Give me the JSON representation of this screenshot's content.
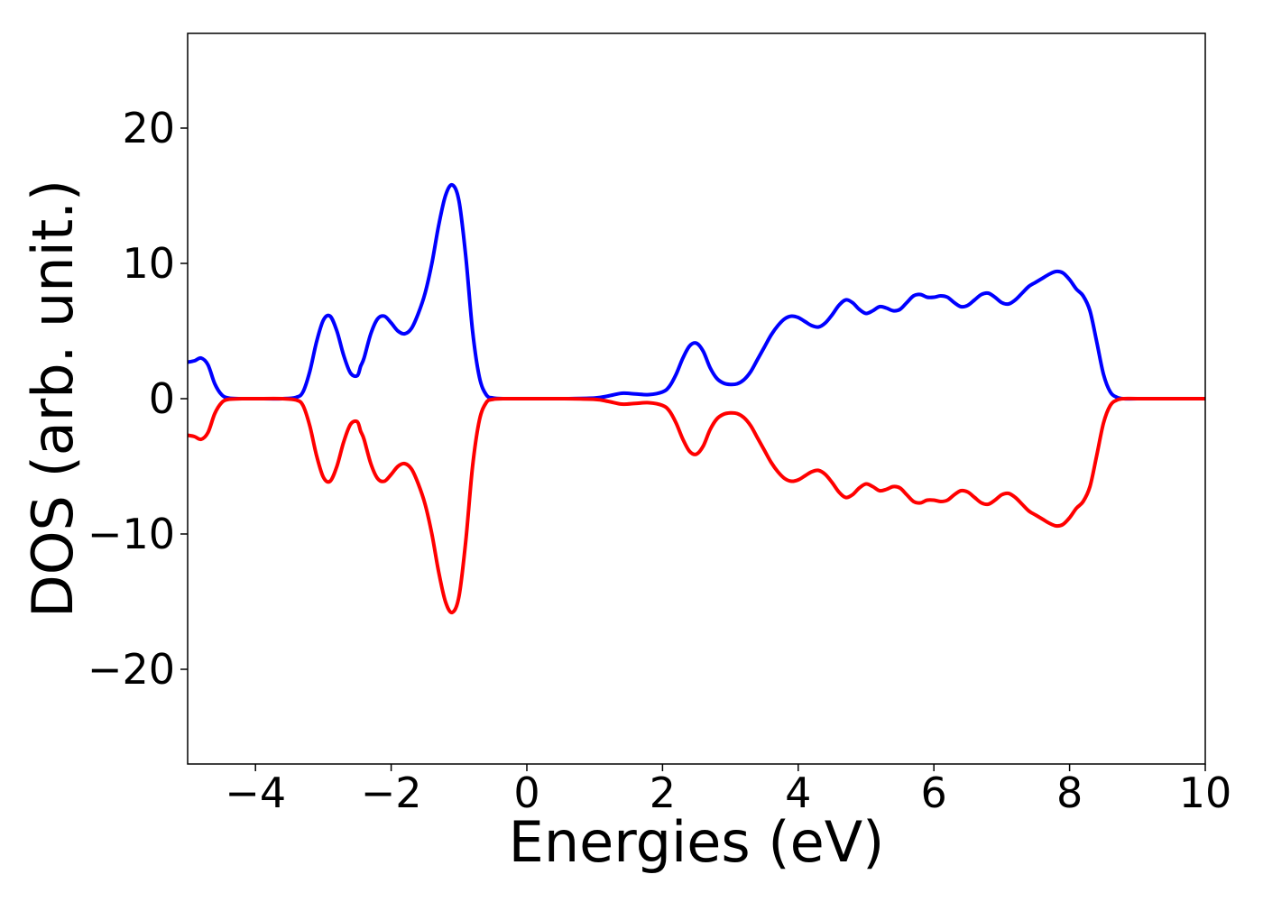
{
  "chart_data": {
    "type": "line",
    "title": "",
    "xlabel": "Energies (eV)",
    "ylabel": "DOS (arb. unit.)",
    "xlim": [
      -5,
      10
    ],
    "ylim": [
      -27,
      27
    ],
    "xticks": [
      -4,
      -2,
      0,
      2,
      4,
      6,
      8,
      10
    ],
    "yticks": [
      -20,
      -10,
      0,
      10,
      20
    ],
    "grid": false,
    "series": [
      {
        "color": "#0000ff",
        "x": [
          -5.0,
          -4.9,
          -4.8,
          -4.7,
          -4.6,
          -4.5,
          -4.4,
          -4.2,
          -4.0,
          -3.6,
          -3.4,
          -3.3,
          -3.2,
          -3.1,
          -3.0,
          -2.9,
          -2.8,
          -2.7,
          -2.6,
          -2.5,
          -2.45,
          -2.4,
          -2.3,
          -2.2,
          -2.1,
          -2.0,
          -1.9,
          -1.8,
          -1.7,
          -1.6,
          -1.5,
          -1.4,
          -1.3,
          -1.2,
          -1.1,
          -1.0,
          -0.9,
          -0.8,
          -0.7,
          -0.6,
          -0.5,
          -0.3,
          0.0,
          0.5,
          1.0,
          1.2,
          1.4,
          1.6,
          1.8,
          2.0,
          2.1,
          2.2,
          2.3,
          2.4,
          2.5,
          2.6,
          2.7,
          2.8,
          2.9,
          3.0,
          3.1,
          3.2,
          3.3,
          3.4,
          3.5,
          3.6,
          3.7,
          3.8,
          3.9,
          4.0,
          4.1,
          4.2,
          4.3,
          4.4,
          4.5,
          4.6,
          4.7,
          4.8,
          4.9,
          5.0,
          5.1,
          5.2,
          5.3,
          5.4,
          5.5,
          5.6,
          5.7,
          5.8,
          5.9,
          6.0,
          6.1,
          6.2,
          6.3,
          6.4,
          6.5,
          6.6,
          6.7,
          6.8,
          6.9,
          7.0,
          7.1,
          7.2,
          7.3,
          7.4,
          7.5,
          7.6,
          7.7,
          7.8,
          7.9,
          8.0,
          8.1,
          8.2,
          8.3,
          8.4,
          8.5,
          8.6,
          8.7,
          8.8,
          9.0,
          9.5,
          10.0
        ],
        "y": [
          2.7,
          2.8,
          3.0,
          2.5,
          1.1,
          0.3,
          0.05,
          0.0,
          0.0,
          0.0,
          0.1,
          0.5,
          2.0,
          4.2,
          5.8,
          6.1,
          5.0,
          3.2,
          1.9,
          1.7,
          2.4,
          3.0,
          4.8,
          5.9,
          6.1,
          5.6,
          5.0,
          4.8,
          5.2,
          6.3,
          7.8,
          10.0,
          12.8,
          15.0,
          15.8,
          14.6,
          10.5,
          5.0,
          1.6,
          0.3,
          0.05,
          0.0,
          0.0,
          0.0,
          0.05,
          0.2,
          0.4,
          0.35,
          0.3,
          0.5,
          0.9,
          1.8,
          3.0,
          3.9,
          4.1,
          3.5,
          2.3,
          1.5,
          1.15,
          1.05,
          1.1,
          1.4,
          2.0,
          2.9,
          3.8,
          4.7,
          5.4,
          5.9,
          6.1,
          6.0,
          5.7,
          5.4,
          5.3,
          5.6,
          6.2,
          6.9,
          7.3,
          7.1,
          6.6,
          6.3,
          6.5,
          6.8,
          6.7,
          6.5,
          6.6,
          7.1,
          7.6,
          7.7,
          7.5,
          7.5,
          7.6,
          7.5,
          7.1,
          6.8,
          6.9,
          7.3,
          7.7,
          7.8,
          7.5,
          7.1,
          7.0,
          7.3,
          7.8,
          8.3,
          8.6,
          8.9,
          9.2,
          9.4,
          9.3,
          8.8,
          8.1,
          7.6,
          6.5,
          4.2,
          1.8,
          0.5,
          0.1,
          0.0,
          0.0,
          0.0,
          0.0
        ]
      },
      {
        "color": "#ff0000",
        "x": [
          -5.0,
          -4.9,
          -4.8,
          -4.7,
          -4.6,
          -4.5,
          -4.4,
          -4.2,
          -4.0,
          -3.6,
          -3.4,
          -3.3,
          -3.2,
          -3.1,
          -3.0,
          -2.9,
          -2.8,
          -2.7,
          -2.6,
          -2.5,
          -2.45,
          -2.4,
          -2.3,
          -2.2,
          -2.1,
          -2.0,
          -1.9,
          -1.8,
          -1.7,
          -1.6,
          -1.5,
          -1.4,
          -1.3,
          -1.2,
          -1.1,
          -1.0,
          -0.9,
          -0.8,
          -0.7,
          -0.6,
          -0.5,
          -0.3,
          0.0,
          0.5,
          1.0,
          1.2,
          1.4,
          1.6,
          1.8,
          2.0,
          2.1,
          2.2,
          2.3,
          2.4,
          2.5,
          2.6,
          2.7,
          2.8,
          2.9,
          3.0,
          3.1,
          3.2,
          3.3,
          3.4,
          3.5,
          3.6,
          3.7,
          3.8,
          3.9,
          4.0,
          4.1,
          4.2,
          4.3,
          4.4,
          4.5,
          4.6,
          4.7,
          4.8,
          4.9,
          5.0,
          5.1,
          5.2,
          5.3,
          5.4,
          5.5,
          5.6,
          5.7,
          5.8,
          5.9,
          6.0,
          6.1,
          6.2,
          6.3,
          6.4,
          6.5,
          6.6,
          6.7,
          6.8,
          6.9,
          7.0,
          7.1,
          7.2,
          7.3,
          7.4,
          7.5,
          7.6,
          7.7,
          7.8,
          7.9,
          8.0,
          8.1,
          8.2,
          8.3,
          8.4,
          8.5,
          8.6,
          8.7,
          8.8,
          9.0,
          9.5,
          10.0
        ],
        "y": [
          -2.7,
          -2.8,
          -3.0,
          -2.5,
          -1.1,
          -0.3,
          -0.05,
          0.0,
          0.0,
          0.0,
          -0.1,
          -0.5,
          -2.0,
          -4.2,
          -5.8,
          -6.1,
          -5.0,
          -3.2,
          -1.9,
          -1.7,
          -2.4,
          -3.0,
          -4.8,
          -5.9,
          -6.1,
          -5.6,
          -5.0,
          -4.8,
          -5.2,
          -6.3,
          -7.8,
          -10.0,
          -12.8,
          -15.0,
          -15.8,
          -14.6,
          -10.5,
          -5.0,
          -1.6,
          -0.3,
          -0.05,
          0.0,
          0.0,
          0.0,
          -0.05,
          -0.2,
          -0.4,
          -0.35,
          -0.3,
          -0.5,
          -0.9,
          -1.8,
          -3.0,
          -3.9,
          -4.1,
          -3.5,
          -2.3,
          -1.5,
          -1.15,
          -1.05,
          -1.1,
          -1.4,
          -2.0,
          -2.9,
          -3.8,
          -4.7,
          -5.4,
          -5.9,
          -6.1,
          -6.0,
          -5.7,
          -5.4,
          -5.3,
          -5.6,
          -6.2,
          -6.9,
          -7.3,
          -7.1,
          -6.6,
          -6.3,
          -6.5,
          -6.8,
          -6.7,
          -6.5,
          -6.6,
          -7.1,
          -7.6,
          -7.7,
          -7.5,
          -7.5,
          -7.6,
          -7.5,
          -7.1,
          -6.8,
          -6.9,
          -7.3,
          -7.7,
          -7.8,
          -7.5,
          -7.1,
          -7.0,
          -7.3,
          -7.8,
          -8.3,
          -8.6,
          -8.9,
          -9.2,
          -9.4,
          -9.3,
          -8.8,
          -8.1,
          -7.6,
          -6.5,
          -4.2,
          -1.8,
          -0.5,
          -0.1,
          0.0,
          0.0,
          0.0,
          0.0
        ]
      }
    ]
  }
}
